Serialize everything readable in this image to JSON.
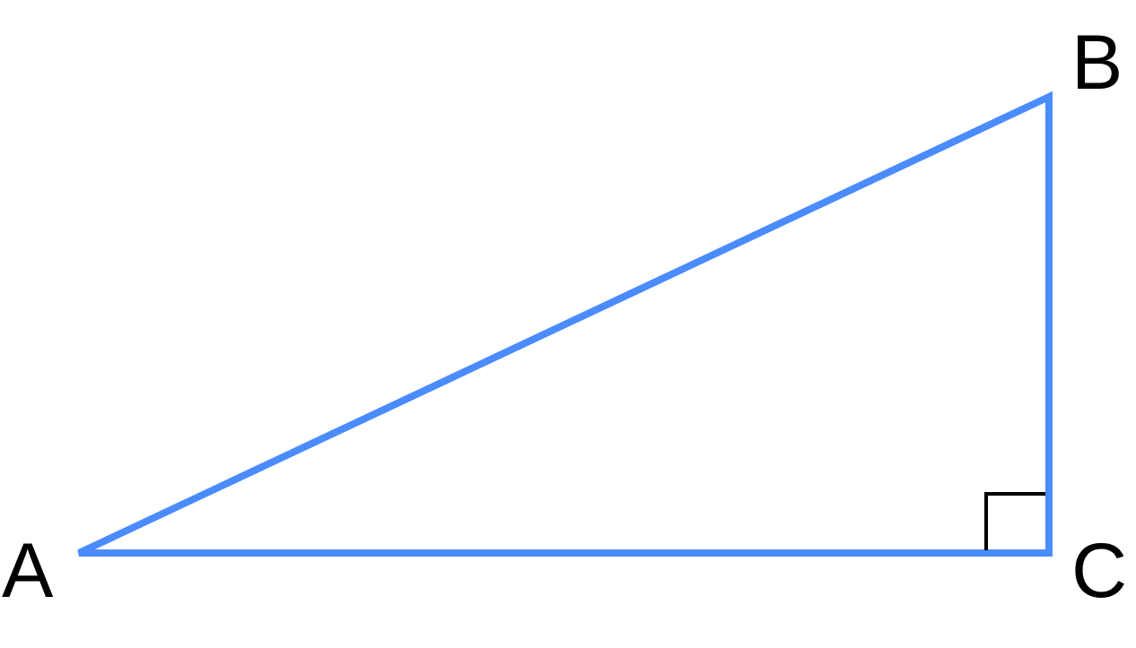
{
  "diagram": {
    "type": "right-triangle",
    "vertices": [
      {
        "label": "A"
      },
      {
        "label": "B"
      },
      {
        "label": "C"
      }
    ],
    "right_angle_at": "C",
    "colors": {
      "triangle": "#4a8cfd",
      "labels": "#000000",
      "right_angle_marker": "#000000"
    }
  }
}
